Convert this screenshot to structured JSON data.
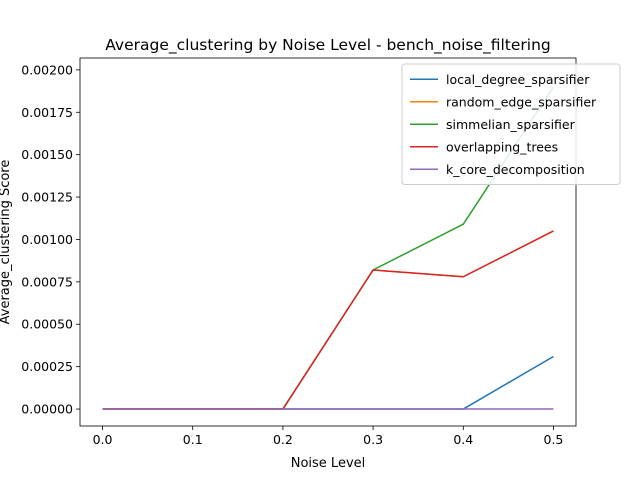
{
  "chart_data": {
    "type": "line",
    "title": "Average_clustering by Noise Level - bench_noise_filtering",
    "xlabel": "Noise Level",
    "ylabel": "Average_clustering Score",
    "x": [
      0.0,
      0.1,
      0.2,
      0.3,
      0.4,
      0.5
    ],
    "xlim": [
      -0.025,
      0.525
    ],
    "ylim": [
      -0.0001,
      0.00207
    ],
    "xticks": [
      0.0,
      0.1,
      0.2,
      0.3,
      0.4,
      0.5
    ],
    "xtick_labels": [
      "0.0",
      "0.1",
      "0.2",
      "0.3",
      "0.4",
      "0.5"
    ],
    "yticks": [
      0.0,
      0.00025,
      0.0005,
      0.00075,
      0.001,
      0.00125,
      0.0015,
      0.00175,
      0.002
    ],
    "ytick_labels": [
      "0.00000",
      "0.00025",
      "0.00050",
      "0.00075",
      "0.00100",
      "0.00125",
      "0.00150",
      "0.00175",
      "0.00200"
    ],
    "legend_position": "top-right",
    "grid": false,
    "series": [
      {
        "name": "local_degree_sparsifier",
        "color": "#1f77b4",
        "values": [
          0.0,
          0.0,
          0.0,
          0.0,
          0.0,
          0.00031
        ]
      },
      {
        "name": "random_edge_sparsifier",
        "color": "#ff7f0e",
        "values": [
          0.0,
          0.0,
          0.0,
          0.00082,
          0.00078,
          0.00105
        ]
      },
      {
        "name": "simmelian_sparsifier",
        "color": "#2ca02c",
        "values": [
          0.0,
          0.0,
          0.0,
          0.00082,
          0.00109,
          0.0019
        ]
      },
      {
        "name": "overlapping_trees",
        "color": "#d62728",
        "values": [
          0.0,
          0.0,
          0.0,
          0.00082,
          0.00078,
          0.00105
        ]
      },
      {
        "name": "k_core_decomposition",
        "color": "#9467bd",
        "values": [
          0.0,
          0.0,
          0.0,
          0.0,
          0.0,
          0.0
        ]
      }
    ]
  }
}
